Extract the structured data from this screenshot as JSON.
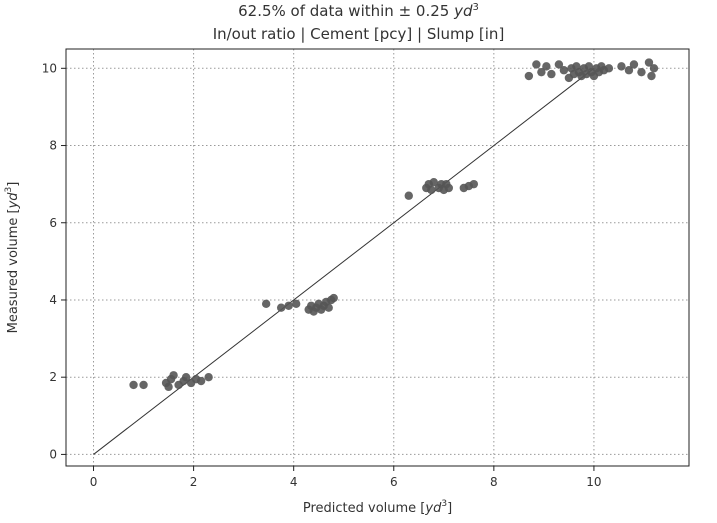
{
  "chart_data": {
    "type": "scatter",
    "title": {
      "prefix": "62.5% of data within ± 0.25 ",
      "unit": "yd",
      "unit_exp": "3"
    },
    "subtitle": "In/out ratio | Cement [pcy] | Slump [in]",
    "xlabel": {
      "text": "Predicted volume [",
      "unit": "yd",
      "exp": "3",
      "suffix": "]"
    },
    "ylabel": {
      "text": "Measured volume [",
      "unit": "yd",
      "exp": "3",
      "suffix": "]"
    },
    "xlim": [
      -0.55,
      11.9
    ],
    "ylim": [
      -0.3,
      10.5
    ],
    "xticks": [
      0,
      2,
      4,
      6,
      8,
      10
    ],
    "yticks": [
      0,
      2,
      4,
      6,
      8,
      10
    ],
    "grid": true,
    "point_color": "#555555",
    "line_color": "#333333",
    "reference_line": {
      "x": [
        0,
        10
      ],
      "y": [
        0,
        10
      ]
    },
    "points": [
      {
        "x": 0.8,
        "y": 1.8
      },
      {
        "x": 1.0,
        "y": 1.8
      },
      {
        "x": 1.45,
        "y": 1.85
      },
      {
        "x": 1.5,
        "y": 1.75
      },
      {
        "x": 1.55,
        "y": 1.95
      },
      {
        "x": 1.6,
        "y": 2.05
      },
      {
        "x": 1.7,
        "y": 1.8
      },
      {
        "x": 1.8,
        "y": 1.9
      },
      {
        "x": 1.85,
        "y": 2.0
      },
      {
        "x": 1.95,
        "y": 1.85
      },
      {
        "x": 2.05,
        "y": 1.95
      },
      {
        "x": 2.15,
        "y": 1.9
      },
      {
        "x": 2.3,
        "y": 2.0
      },
      {
        "x": 3.45,
        "y": 3.9
      },
      {
        "x": 3.75,
        "y": 3.8
      },
      {
        "x": 3.9,
        "y": 3.85
      },
      {
        "x": 4.05,
        "y": 3.9
      },
      {
        "x": 4.3,
        "y": 3.75
      },
      {
        "x": 4.35,
        "y": 3.85
      },
      {
        "x": 4.4,
        "y": 3.7
      },
      {
        "x": 4.45,
        "y": 3.8
      },
      {
        "x": 4.5,
        "y": 3.9
      },
      {
        "x": 4.55,
        "y": 3.75
      },
      {
        "x": 4.6,
        "y": 3.85
      },
      {
        "x": 4.65,
        "y": 3.95
      },
      {
        "x": 4.7,
        "y": 3.8
      },
      {
        "x": 4.75,
        "y": 4.0
      },
      {
        "x": 4.8,
        "y": 4.05
      },
      {
        "x": 6.3,
        "y": 6.7
      },
      {
        "x": 6.65,
        "y": 6.9
      },
      {
        "x": 6.7,
        "y": 7.0
      },
      {
        "x": 6.75,
        "y": 6.85
      },
      {
        "x": 6.8,
        "y": 7.05
      },
      {
        "x": 6.9,
        "y": 6.9
      },
      {
        "x": 6.95,
        "y": 7.0
      },
      {
        "x": 7.0,
        "y": 6.85
      },
      {
        "x": 7.05,
        "y": 7.0
      },
      {
        "x": 7.1,
        "y": 6.9
      },
      {
        "x": 7.4,
        "y": 6.9
      },
      {
        "x": 7.5,
        "y": 6.95
      },
      {
        "x": 7.6,
        "y": 7.0
      },
      {
        "x": 8.7,
        "y": 9.8
      },
      {
        "x": 8.85,
        "y": 10.1
      },
      {
        "x": 8.95,
        "y": 9.9
      },
      {
        "x": 9.05,
        "y": 10.05
      },
      {
        "x": 9.15,
        "y": 9.85
      },
      {
        "x": 9.3,
        "y": 10.1
      },
      {
        "x": 9.4,
        "y": 9.95
      },
      {
        "x": 9.5,
        "y": 9.75
      },
      {
        "x": 9.55,
        "y": 10.0
      },
      {
        "x": 9.6,
        "y": 9.85
      },
      {
        "x": 9.65,
        "y": 10.05
      },
      {
        "x": 9.7,
        "y": 9.9
      },
      {
        "x": 9.75,
        "y": 9.8
      },
      {
        "x": 9.8,
        "y": 10.0
      },
      {
        "x": 9.85,
        "y": 9.85
      },
      {
        "x": 9.9,
        "y": 10.05
      },
      {
        "x": 9.95,
        "y": 9.9
      },
      {
        "x": 10.0,
        "y": 9.8
      },
      {
        "x": 10.05,
        "y": 10.0
      },
      {
        "x": 10.1,
        "y": 9.9
      },
      {
        "x": 10.15,
        "y": 10.05
      },
      {
        "x": 10.2,
        "y": 9.95
      },
      {
        "x": 10.3,
        "y": 10.0
      },
      {
        "x": 10.55,
        "y": 10.05
      },
      {
        "x": 10.7,
        "y": 9.95
      },
      {
        "x": 10.8,
        "y": 10.1
      },
      {
        "x": 10.95,
        "y": 9.9
      },
      {
        "x": 11.1,
        "y": 10.15
      },
      {
        "x": 11.15,
        "y": 9.8
      },
      {
        "x": 11.2,
        "y": 10.0
      }
    ]
  }
}
